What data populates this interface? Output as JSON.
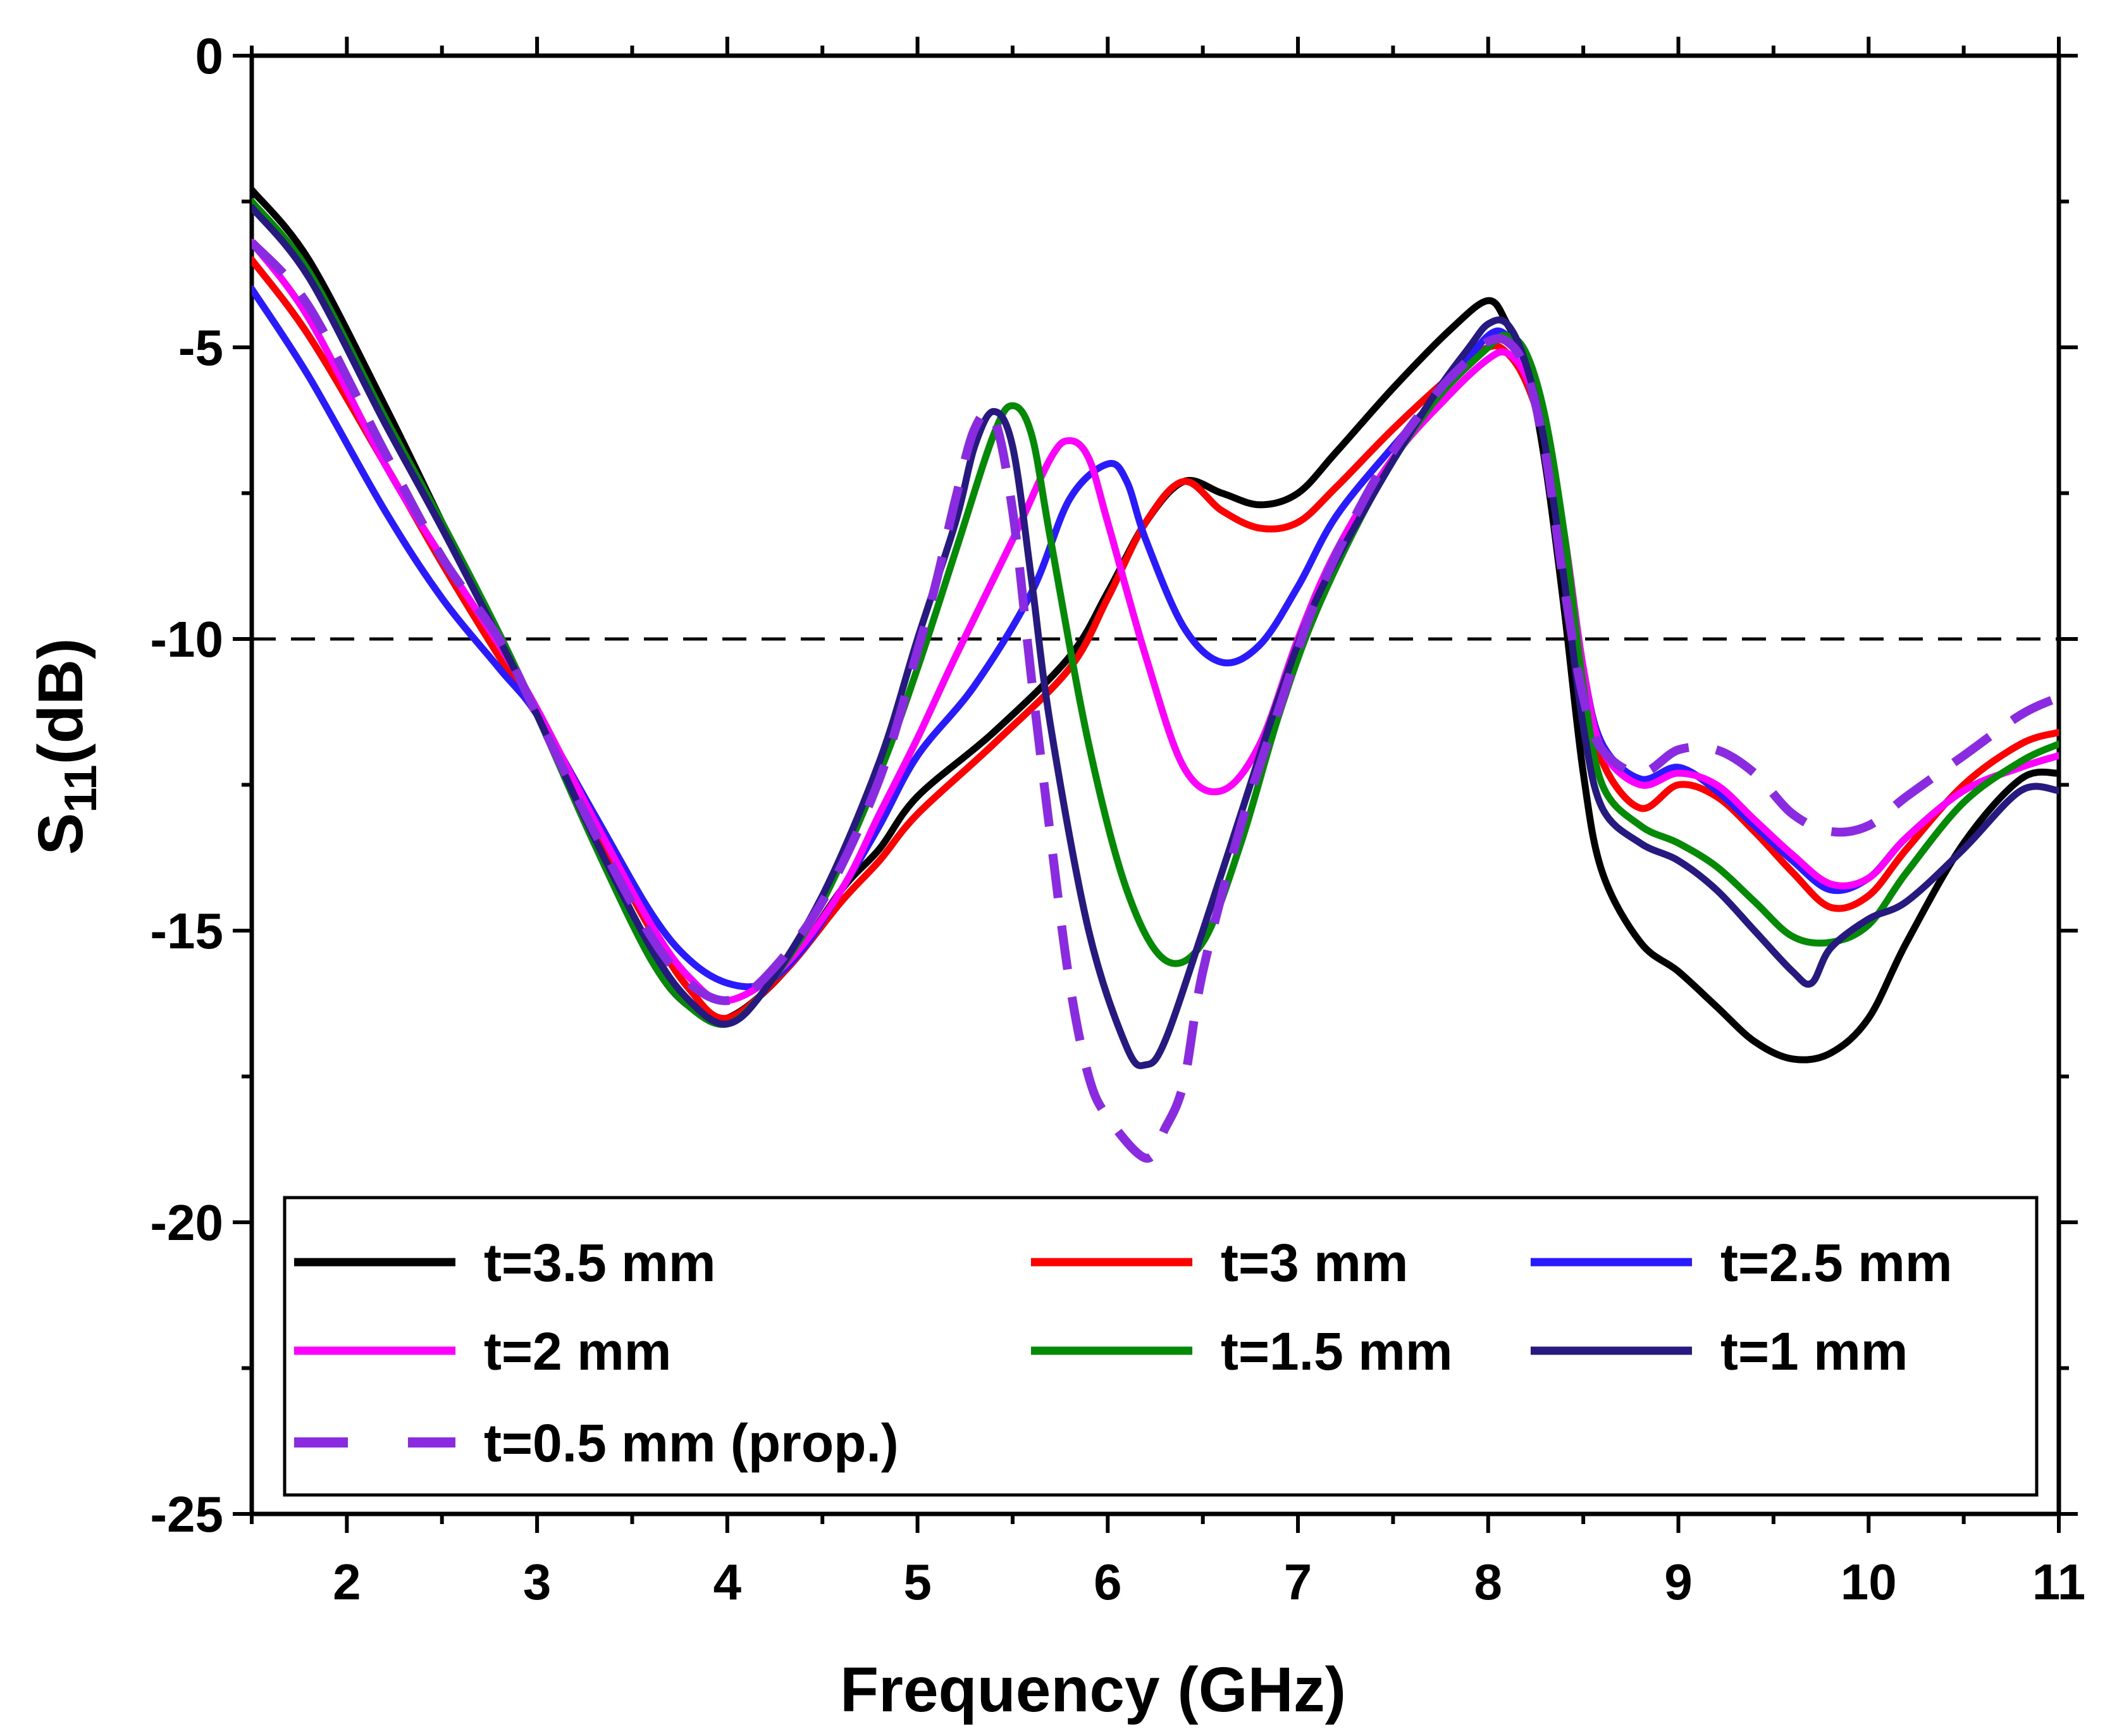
{
  "chart_data": {
    "type": "line",
    "title": "",
    "xlabel": "Frequency (GHz)",
    "ylabel_main": "S",
    "ylabel_sub": "11",
    "ylabel_suffix": "(dB)",
    "xlim": [
      1.5,
      11
    ],
    "ylim": [
      -25,
      0
    ],
    "xticks": [
      2,
      3,
      4,
      5,
      6,
      7,
      8,
      9,
      10,
      11
    ],
    "xtick_labels": [
      "2",
      "3",
      "4",
      "5",
      "6",
      "7",
      "8",
      "9",
      "10",
      "11"
    ],
    "yticks": [
      0,
      -5,
      -10,
      -15,
      -20,
      -25
    ],
    "ytick_labels": [
      "0",
      "-5",
      "-10",
      "-15",
      "-20",
      "-25"
    ],
    "reference_line": {
      "y": -10,
      "style": "dashed",
      "color": "#000000"
    },
    "legend_position": "bottom-left",
    "series": [
      {
        "name": "t=3.5 mm",
        "color": "#000000",
        "dash": false,
        "x": [
          1.5,
          1.8,
          2.2,
          2.5,
          2.8,
          3.0,
          3.3,
          3.6,
          3.8,
          4.0,
          4.3,
          4.6,
          4.8,
          5.0,
          5.4,
          5.8,
          6.0,
          6.2,
          6.4,
          6.6,
          6.8,
          7.0,
          7.2,
          7.5,
          7.8,
          8.0,
          8.1,
          8.2,
          8.3,
          8.4,
          8.5,
          8.6,
          8.8,
          9.0,
          9.2,
          9.4,
          9.6,
          9.8,
          10.0,
          10.2,
          10.5,
          10.8,
          11.0
        ],
        "y": [
          -2.3,
          -3.5,
          -6.0,
          -8.0,
          -10.0,
          -11.3,
          -13.5,
          -15.5,
          -16.3,
          -16.5,
          -15.7,
          -14.3,
          -13.6,
          -12.7,
          -11.6,
          -10.3,
          -9.2,
          -8.0,
          -7.3,
          -7.5,
          -7.7,
          -7.5,
          -6.8,
          -5.7,
          -4.7,
          -4.2,
          -4.6,
          -5.3,
          -7.0,
          -9.5,
          -12.3,
          -14.0,
          -15.2,
          -15.7,
          -16.3,
          -16.9,
          -17.2,
          -17.1,
          -16.5,
          -15.2,
          -13.5,
          -12.4,
          -12.3
        ]
      },
      {
        "name": "t=3 mm",
        "color": "#ff0000",
        "dash": false,
        "x": [
          1.5,
          1.8,
          2.2,
          2.5,
          2.8,
          3.0,
          3.3,
          3.6,
          3.8,
          4.0,
          4.3,
          4.6,
          4.8,
          5.0,
          5.4,
          5.8,
          6.0,
          6.2,
          6.4,
          6.6,
          6.8,
          7.0,
          7.2,
          7.5,
          7.8,
          8.0,
          8.1,
          8.2,
          8.3,
          8.4,
          8.5,
          8.6,
          8.8,
          9.0,
          9.2,
          9.4,
          9.6,
          9.8,
          10.0,
          10.2,
          10.5,
          10.8,
          11.0
        ],
        "y": [
          -3.5,
          -4.8,
          -7.0,
          -8.7,
          -10.3,
          -11.3,
          -13.2,
          -15.0,
          -16.0,
          -16.5,
          -15.7,
          -14.5,
          -13.8,
          -13.0,
          -11.8,
          -10.5,
          -9.3,
          -8.0,
          -7.3,
          -7.8,
          -8.1,
          -8.0,
          -7.4,
          -6.4,
          -5.5,
          -5.0,
          -5.1,
          -5.6,
          -6.6,
          -8.3,
          -10.6,
          -12.1,
          -12.9,
          -12.5,
          -12.7,
          -13.3,
          -14.0,
          -14.6,
          -14.4,
          -13.6,
          -12.5,
          -11.8,
          -11.6
        ]
      },
      {
        "name": "t=2.5 mm",
        "color": "#2a1aff",
        "dash": false,
        "x": [
          1.5,
          1.8,
          2.2,
          2.5,
          2.8,
          3.0,
          3.3,
          3.6,
          3.8,
          4.0,
          4.2,
          4.4,
          4.6,
          4.8,
          5.0,
          5.3,
          5.6,
          5.8,
          6.0,
          6.1,
          6.2,
          6.4,
          6.6,
          6.8,
          7.0,
          7.2,
          7.5,
          7.8,
          8.0,
          8.1,
          8.2,
          8.3,
          8.4,
          8.5,
          8.6,
          8.8,
          9.0,
          9.2,
          9.4,
          9.6,
          9.8,
          10.0,
          10.2,
          10.5,
          10.8,
          11.0
        ],
        "y": [
          -4.0,
          -5.5,
          -7.8,
          -9.3,
          -10.5,
          -11.3,
          -13.0,
          -14.7,
          -15.5,
          -15.9,
          -15.9,
          -15.3,
          -14.3,
          -13.2,
          -12.0,
          -10.8,
          -9.2,
          -7.6,
          -7.0,
          -7.3,
          -8.3,
          -9.8,
          -10.4,
          -10.1,
          -9.1,
          -7.9,
          -6.7,
          -5.6,
          -4.8,
          -4.8,
          -5.3,
          -6.4,
          -8.2,
          -10.5,
          -11.8,
          -12.4,
          -12.2,
          -12.6,
          -13.2,
          -13.8,
          -14.3,
          -14.1,
          -13.4,
          -12.6,
          -12.2,
          -12.0
        ]
      },
      {
        "name": "t=2 mm",
        "color": "#ff00ff",
        "dash": false,
        "x": [
          1.5,
          1.8,
          2.2,
          2.5,
          2.8,
          3.0,
          3.3,
          3.6,
          3.8,
          4.0,
          4.3,
          4.6,
          4.8,
          5.0,
          5.2,
          5.5,
          5.7,
          5.8,
          5.9,
          6.0,
          6.2,
          6.4,
          6.6,
          6.8,
          7.0,
          7.2,
          7.5,
          7.8,
          8.0,
          8.1,
          8.2,
          8.3,
          8.4,
          8.5,
          8.6,
          8.8,
          9.0,
          9.2,
          9.4,
          9.6,
          9.8,
          10.0,
          10.2,
          10.5,
          10.8,
          11.0
        ],
        "y": [
          -3.2,
          -4.5,
          -7.0,
          -8.6,
          -10.1,
          -11.2,
          -13.1,
          -14.9,
          -15.8,
          -16.2,
          -15.6,
          -14.3,
          -13.0,
          -11.7,
          -10.3,
          -8.3,
          -6.9,
          -6.6,
          -6.9,
          -8.0,
          -10.3,
          -12.2,
          -12.6,
          -11.8,
          -10.0,
          -8.5,
          -6.9,
          -5.8,
          -5.2,
          -5.1,
          -5.5,
          -6.5,
          -8.2,
          -10.5,
          -11.9,
          -12.5,
          -12.3,
          -12.5,
          -13.1,
          -13.7,
          -14.2,
          -14.1,
          -13.4,
          -12.6,
          -12.2,
          -12.0
        ]
      },
      {
        "name": "t=1.5 mm",
        "color": "#058a05",
        "dash": false,
        "x": [
          1.5,
          1.8,
          2.2,
          2.5,
          2.8,
          3.0,
          3.3,
          3.6,
          3.8,
          4.0,
          4.2,
          4.5,
          4.8,
          5.0,
          5.2,
          5.4,
          5.5,
          5.6,
          5.7,
          5.9,
          6.1,
          6.3,
          6.5,
          6.7,
          6.9,
          7.1,
          7.4,
          7.7,
          8.0,
          8.1,
          8.2,
          8.3,
          8.4,
          8.5,
          8.6,
          8.8,
          9.0,
          9.2,
          9.4,
          9.6,
          9.8,
          10.0,
          10.2,
          10.5,
          10.8,
          11.0
        ],
        "y": [
          -2.5,
          -3.7,
          -6.2,
          -8.0,
          -9.9,
          -11.3,
          -13.5,
          -15.5,
          -16.3,
          -16.6,
          -16.0,
          -14.5,
          -12.3,
          -10.5,
          -8.5,
          -6.5,
          -6.0,
          -6.5,
          -8.3,
          -11.8,
          -14.3,
          -15.5,
          -15.2,
          -13.5,
          -11.3,
          -9.5,
          -7.5,
          -6.0,
          -5.0,
          -4.8,
          -5.1,
          -6.2,
          -8.2,
          -10.8,
          -12.5,
          -13.2,
          -13.5,
          -13.9,
          -14.5,
          -15.1,
          -15.2,
          -14.9,
          -14.0,
          -12.8,
          -12.1,
          -11.8
        ]
      },
      {
        "name": "t=1 mm",
        "color": "#261a80",
        "dash": false,
        "x": [
          1.5,
          1.8,
          2.2,
          2.5,
          2.8,
          3.0,
          3.3,
          3.6,
          3.8,
          4.0,
          4.2,
          4.5,
          4.8,
          5.0,
          5.2,
          5.3,
          5.4,
          5.5,
          5.6,
          5.7,
          5.9,
          6.1,
          6.2,
          6.3,
          6.5,
          6.7,
          6.9,
          7.1,
          7.4,
          7.7,
          7.9,
          8.0,
          8.1,
          8.2,
          8.3,
          8.4,
          8.5,
          8.6,
          8.8,
          9.0,
          9.2,
          9.4,
          9.6,
          9.7,
          9.8,
          10.0,
          10.2,
          10.5,
          10.8,
          11.0
        ],
        "y": [
          -2.6,
          -3.8,
          -6.3,
          -8.1,
          -10.0,
          -11.3,
          -13.4,
          -15.3,
          -16.2,
          -16.6,
          -16.0,
          -14.4,
          -12.1,
          -10.0,
          -8.0,
          -6.7,
          -6.1,
          -6.7,
          -9.0,
          -11.5,
          -15.0,
          -17.0,
          -17.3,
          -16.9,
          -15.0,
          -13.0,
          -11.0,
          -9.3,
          -7.5,
          -5.9,
          -5.0,
          -4.6,
          -4.6,
          -5.3,
          -6.7,
          -9.0,
          -11.5,
          -12.9,
          -13.5,
          -13.8,
          -14.3,
          -15.0,
          -15.7,
          -15.9,
          -15.3,
          -14.8,
          -14.5,
          -13.6,
          -12.6,
          -12.6
        ]
      },
      {
        "name": "t=0.5 mm (prop.)",
        "color": "#8a2be2",
        "dash": true,
        "x": [
          1.5,
          1.8,
          2.2,
          2.5,
          2.8,
          3.0,
          3.3,
          3.6,
          3.8,
          4.0,
          4.2,
          4.5,
          4.8,
          5.0,
          5.1,
          5.2,
          5.3,
          5.4,
          5.5,
          5.6,
          5.7,
          5.8,
          5.9,
          6.0,
          6.2,
          6.3,
          6.4,
          6.5,
          6.7,
          6.9,
          7.1,
          7.4,
          7.7,
          7.9,
          8.0,
          8.1,
          8.2,
          8.3,
          8.4,
          8.5,
          8.6,
          8.8,
          9.0,
          9.2,
          9.4,
          9.6,
          9.8,
          10.0,
          10.2,
          10.5,
          10.8,
          11.0
        ],
        "y": [
          -3.2,
          -4.3,
          -6.8,
          -8.6,
          -10.0,
          -11.3,
          -13.3,
          -15.1,
          -15.9,
          -16.2,
          -15.8,
          -14.5,
          -12.4,
          -10.2,
          -9.0,
          -7.6,
          -6.4,
          -6.2,
          -7.8,
          -10.7,
          -13.4,
          -15.9,
          -17.5,
          -18.2,
          -18.9,
          -18.4,
          -17.6,
          -15.7,
          -13.2,
          -11.2,
          -9.3,
          -7.3,
          -5.9,
          -5.2,
          -4.9,
          -4.9,
          -5.4,
          -6.8,
          -9.1,
          -11.0,
          -11.9,
          -12.3,
          -11.9,
          -11.9,
          -12.3,
          -13.0,
          -13.3,
          -13.2,
          -12.7,
          -12.0,
          -11.3,
          -11.0
        ]
      }
    ]
  }
}
